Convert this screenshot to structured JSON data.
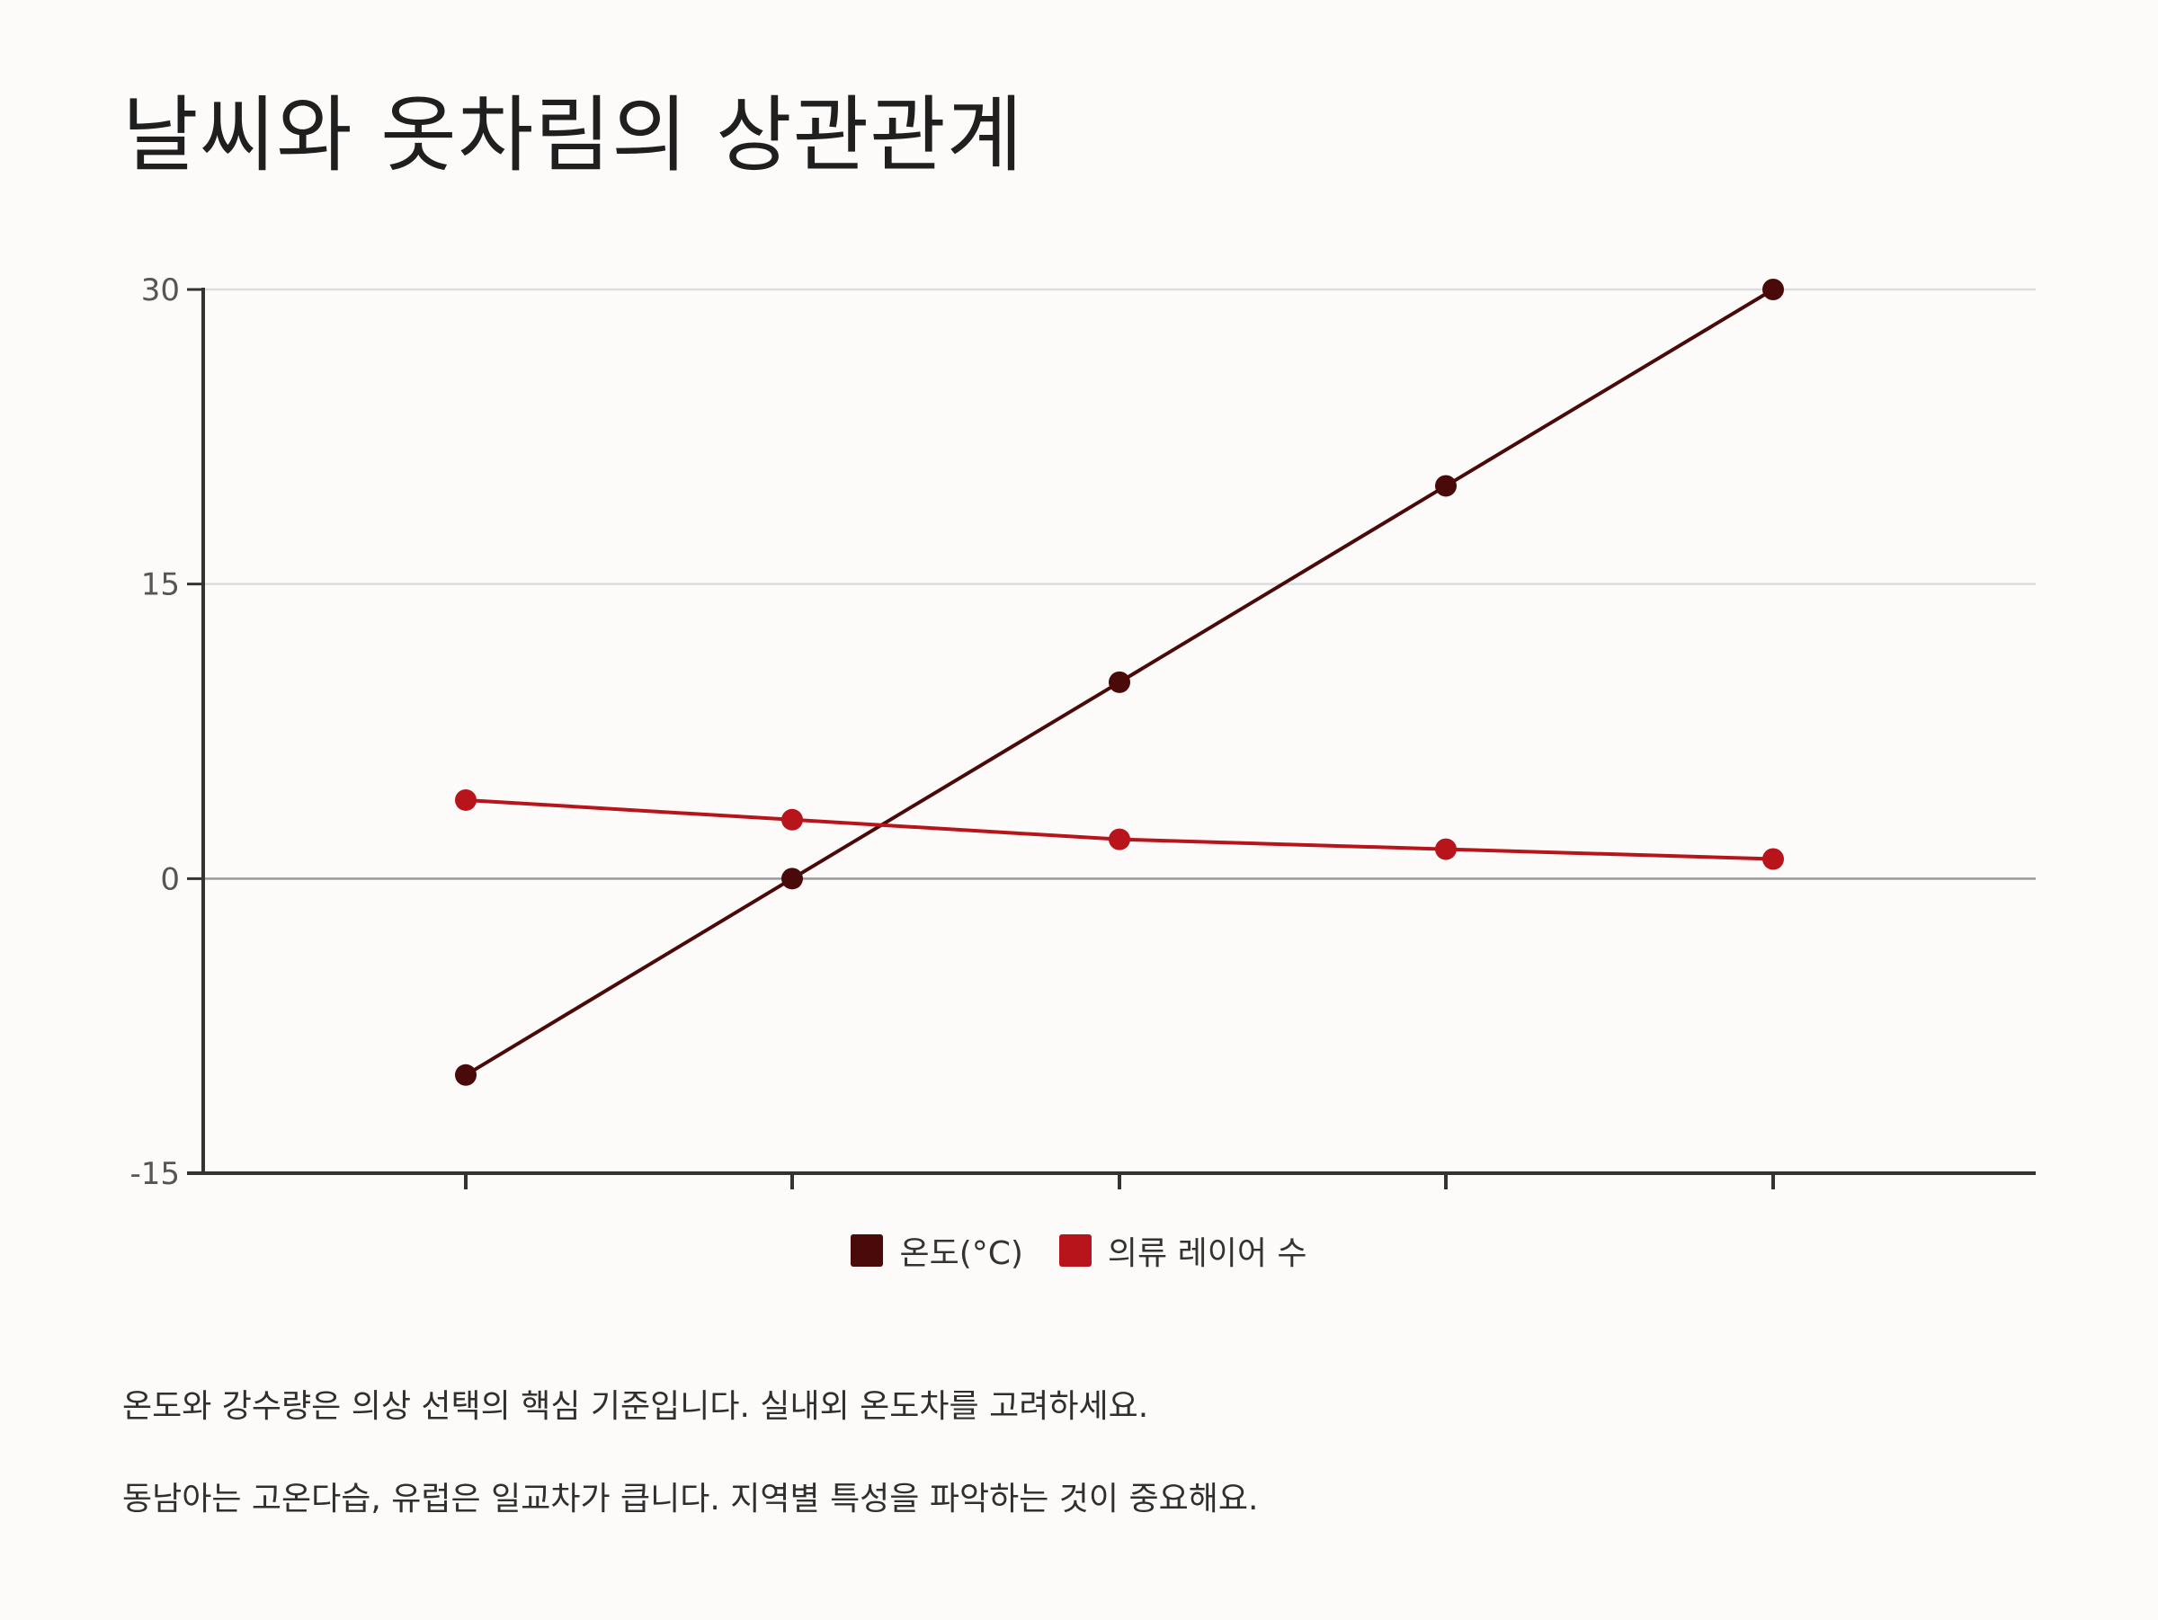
{
  "title": "날씨와 옷차림의 상관관계",
  "colors": {
    "temperature": "#4a0a0a",
    "layers": "#b8141c",
    "axis": "#333333",
    "zero_line": "#9a9a9a",
    "grid": "#dddddd",
    "background": "#fdfbfa"
  },
  "chart_data": {
    "type": "line",
    "categories": [
      "",
      "",
      "",
      "",
      ""
    ],
    "series": [
      {
        "name": "온도(°C)",
        "values": [
          -10,
          0,
          10,
          20,
          30
        ]
      },
      {
        "name": "의류 레이어 수",
        "values": [
          4,
          3,
          2,
          1.5,
          1
        ]
      }
    ],
    "yticks": [
      "30",
      "15",
      "0",
      "-15"
    ],
    "ylim": [
      -15,
      30
    ],
    "grid": true,
    "legend_position": "bottom-center"
  },
  "legend": {
    "temperature_label": "온도(°C)",
    "layers_label": "의류 레이어 수"
  },
  "notes": [
    "온도와 강수량은 의상 선택의 핵심 기준입니다. 실내외 온도차를 고려하세요.",
    "동남아는 고온다습, 유럽은 일교차가 큽니다. 지역별 특성을 파악하는 것이 중요해요."
  ]
}
